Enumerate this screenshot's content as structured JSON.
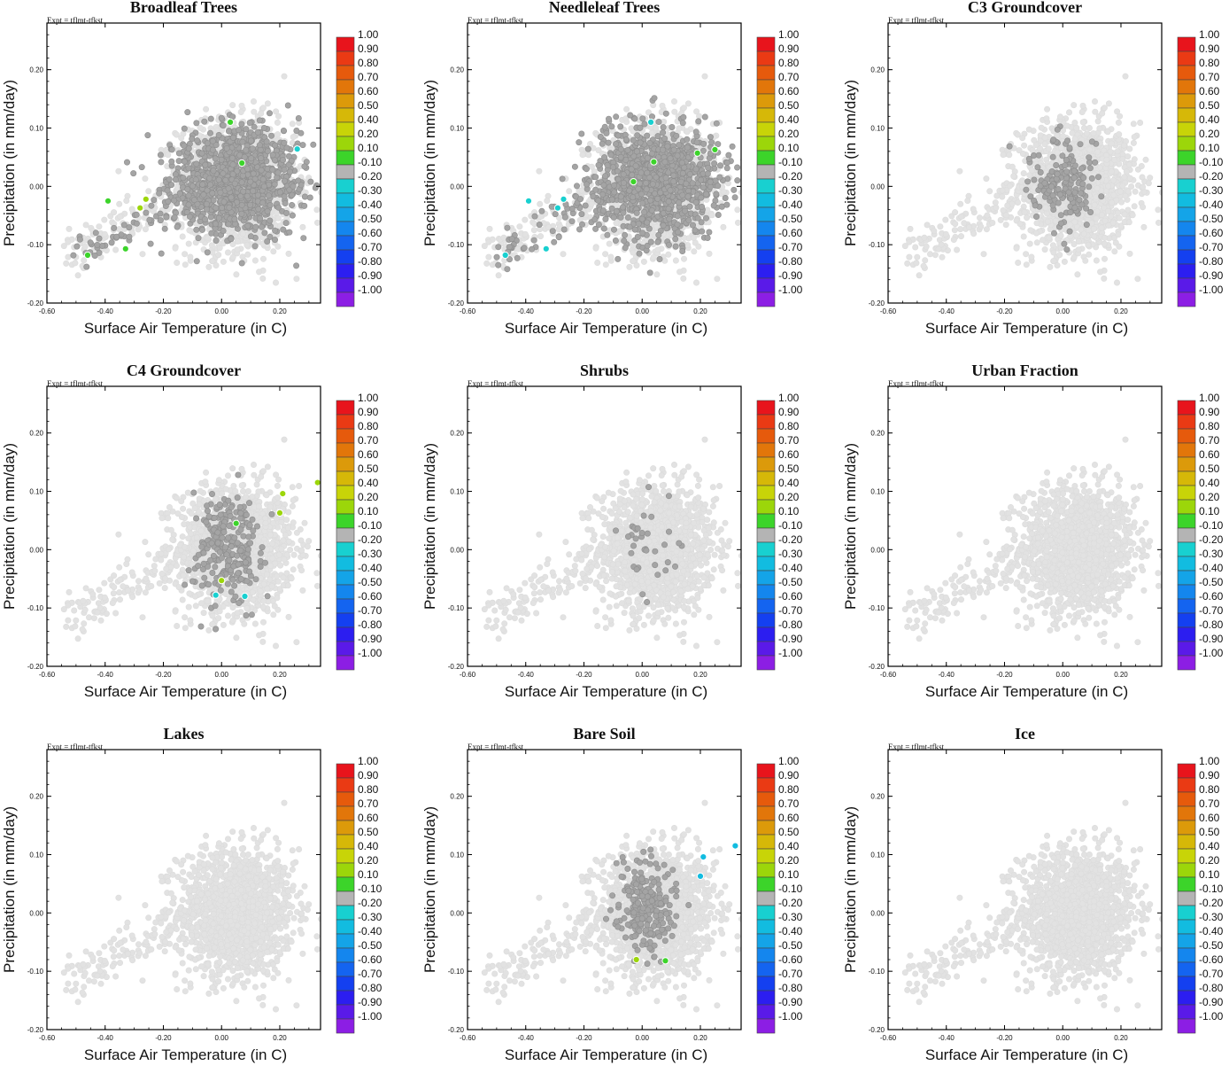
{
  "figure": {
    "experiment_label": "Expt = tflmt-tfkst",
    "xlabel": "Surface Air Temperature (in C)",
    "ylabel": "Precipitation (in mm/day)",
    "xticks": [
      "-0.60",
      "-0.40",
      "-0.20",
      "0.00",
      "0.20"
    ],
    "yticks": [
      "0.20",
      "0.10",
      "0.00",
      "-0.10",
      "-0.20"
    ],
    "colorbar_labels": [
      "1.00",
      "0.90",
      "0.80",
      "0.70",
      "0.60",
      "0.50",
      "0.40",
      "0.20",
      "0.10",
      "-0.10",
      "-0.20",
      "-0.30",
      "-0.40",
      "-0.50",
      "-0.60",
      "-0.70",
      "-0.80",
      "-0.90",
      "-1.00"
    ],
    "colorbar_colors": [
      "#e8141c",
      "#ea3a14",
      "#e65a0c",
      "#e2760a",
      "#dc9a0a",
      "#d6b808",
      "#c8d408",
      "#9cd60a",
      "#3cd42a",
      "#b4b4b4",
      "#18d0d0",
      "#12bce0",
      "#14a4e8",
      "#1486ee",
      "#1464f0",
      "#1440f0",
      "#2c1ef0",
      "#5a1ae8",
      "#8c1ee4"
    ],
    "colors": {
      "background_point": "#e2e2e2",
      "neutral_point": "#a4a4a4",
      "point_outline": "#c8c8c8"
    }
  },
  "chart_data": [
    {
      "type": "scatter",
      "title": "Broadleaf Trees",
      "xlim": [
        -0.6,
        0.34
      ],
      "ylim": [
        -0.2,
        0.28
      ],
      "neutral_cluster": {
        "center": [
          0.05,
          0.01
        ],
        "spread": [
          0.11,
          0.045
        ],
        "n": 1100
      },
      "points": [
        {
          "x": 0.03,
          "y": 0.11,
          "color": "#3cd42a"
        },
        {
          "x": 0.07,
          "y": 0.04,
          "color": "#3cd42a"
        },
        {
          "x": -0.39,
          "y": -0.025,
          "color": "#3cd42a"
        },
        {
          "x": -0.26,
          "y": -0.022,
          "color": "#9cd60a"
        },
        {
          "x": -0.28,
          "y": -0.037,
          "color": "#9cd60a"
        },
        {
          "x": -0.33,
          "y": -0.107,
          "color": "#3cd42a"
        },
        {
          "x": -0.46,
          "y": -0.118,
          "color": "#3cd42a"
        },
        {
          "x": 0.26,
          "y": 0.064,
          "color": "#18d0d0"
        }
      ]
    },
    {
      "type": "scatter",
      "title": "Needleleaf Trees",
      "xlim": [
        -0.6,
        0.34
      ],
      "ylim": [
        -0.2,
        0.28
      ],
      "neutral_cluster": {
        "center": [
          0.05,
          0.01
        ],
        "spread": [
          0.11,
          0.045
        ],
        "n": 1050
      },
      "points": [
        {
          "x": 0.03,
          "y": 0.11,
          "color": "#18d0d0"
        },
        {
          "x": 0.04,
          "y": 0.042,
          "color": "#3cd42a"
        },
        {
          "x": -0.03,
          "y": 0.008,
          "color": "#3cd42a"
        },
        {
          "x": 0.19,
          "y": 0.057,
          "color": "#3cd42a"
        },
        {
          "x": 0.25,
          "y": 0.063,
          "color": "#3cd42a"
        },
        {
          "x": -0.39,
          "y": -0.025,
          "color": "#18d0d0"
        },
        {
          "x": -0.27,
          "y": -0.022,
          "color": "#18d0d0"
        },
        {
          "x": -0.29,
          "y": -0.037,
          "color": "#18d0d0"
        },
        {
          "x": -0.33,
          "y": -0.107,
          "color": "#18d0d0"
        },
        {
          "x": -0.47,
          "y": -0.118,
          "color": "#18d0d0"
        }
      ]
    },
    {
      "type": "scatter",
      "title": "C3 Groundcover",
      "xlim": [
        -0.6,
        0.34
      ],
      "ylim": [
        -0.2,
        0.28
      ],
      "neutral_cluster": {
        "center": [
          0.0,
          0.01
        ],
        "spread": [
          0.055,
          0.04
        ],
        "n": 170
      },
      "points": []
    },
    {
      "type": "scatter",
      "title": "C4 Groundcover",
      "xlim": [
        -0.6,
        0.34
      ],
      "ylim": [
        -0.2,
        0.28
      ],
      "neutral_cluster": {
        "center": [
          0.02,
          0.0
        ],
        "spread": [
          0.055,
          0.05
        ],
        "n": 260
      },
      "points": [
        {
          "x": 0.05,
          "y": 0.045,
          "color": "#3cd42a"
        },
        {
          "x": 0.21,
          "y": 0.096,
          "color": "#9cd60a"
        },
        {
          "x": 0.2,
          "y": 0.063,
          "color": "#9cd60a"
        },
        {
          "x": 0.33,
          "y": 0.115,
          "color": "#9cd60a"
        },
        {
          "x": 0.0,
          "y": -0.053,
          "color": "#9cd60a"
        },
        {
          "x": -0.02,
          "y": -0.078,
          "color": "#18d0d0"
        },
        {
          "x": 0.08,
          "y": -0.08,
          "color": "#18d0d0"
        }
      ]
    },
    {
      "type": "scatter",
      "title": "Shrubs",
      "xlim": [
        -0.6,
        0.34
      ],
      "ylim": [
        -0.2,
        0.28
      ],
      "neutral_cluster": {
        "center": [
          0.03,
          0.0
        ],
        "spread": [
          0.06,
          0.04
        ],
        "n": 35
      },
      "points": []
    },
    {
      "type": "scatter",
      "title": "Urban Fraction",
      "xlim": [
        -0.6,
        0.34
      ],
      "ylim": [
        -0.2,
        0.28
      ],
      "neutral_cluster": {
        "center": [
          0.0,
          0.0
        ],
        "spread": [
          0.0,
          0.0
        ],
        "n": 0
      },
      "points": []
    },
    {
      "type": "scatter",
      "title": "Lakes",
      "xlim": [
        -0.6,
        0.34
      ],
      "ylim": [
        -0.2,
        0.28
      ],
      "neutral_cluster": {
        "center": [
          0.0,
          0.0
        ],
        "spread": [
          0.0,
          0.0
        ],
        "n": 0
      },
      "points": []
    },
    {
      "type": "scatter",
      "title": "Bare Soil",
      "xlim": [
        -0.6,
        0.34
      ],
      "ylim": [
        -0.2,
        0.28
      ],
      "neutral_cluster": {
        "center": [
          0.01,
          0.01
        ],
        "spread": [
          0.05,
          0.04
        ],
        "n": 230
      },
      "points": [
        {
          "x": 0.21,
          "y": 0.096,
          "color": "#12bce0"
        },
        {
          "x": 0.2,
          "y": 0.063,
          "color": "#12bce0"
        },
        {
          "x": 0.32,
          "y": 0.115,
          "color": "#12bce0"
        },
        {
          "x": -0.02,
          "y": -0.08,
          "color": "#9cd60a"
        },
        {
          "x": 0.08,
          "y": -0.082,
          "color": "#3cd42a"
        }
      ]
    },
    {
      "type": "scatter",
      "title": "Ice",
      "xlim": [
        -0.6,
        0.34
      ],
      "ylim": [
        -0.2,
        0.28
      ],
      "neutral_cluster": {
        "center": [
          0.0,
          0.0
        ],
        "spread": [
          0.0,
          0.0
        ],
        "n": 0
      },
      "points": []
    }
  ]
}
